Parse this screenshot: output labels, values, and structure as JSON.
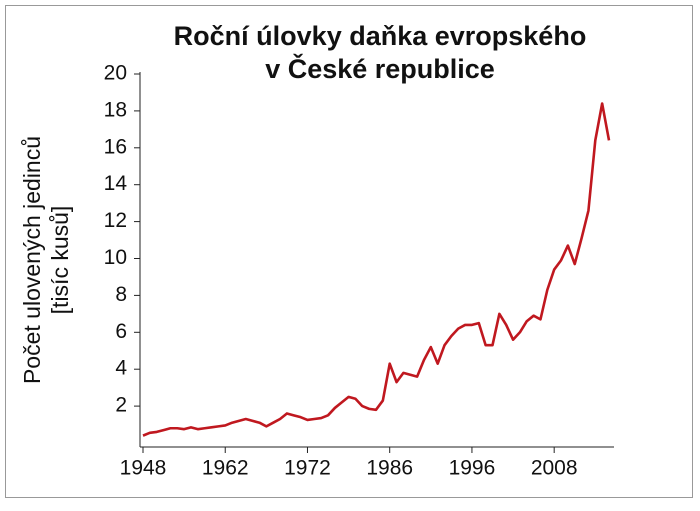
{
  "chart_data": {
    "type": "line",
    "title": [
      "Roční úlovky daňka evropského",
      "v České republice"
    ],
    "ylabel": [
      "Počet ulovených jedinců",
      "[tisíc kusů]"
    ],
    "categories": [
      "1948",
      null,
      null,
      null,
      null,
      null,
      null,
      null,
      null,
      null,
      null,
      null,
      "1962",
      null,
      null,
      null,
      null,
      null,
      null,
      null,
      null,
      null,
      null,
      null,
      "1972",
      null,
      null,
      null,
      null,
      null,
      null,
      null,
      null,
      null,
      null,
      null,
      "1986",
      null,
      null,
      null,
      null,
      null,
      null,
      null,
      null,
      null,
      null,
      null,
      "1996",
      null,
      null,
      null,
      null,
      null,
      null,
      null,
      null,
      null,
      null,
      null,
      "2008",
      null,
      null,
      null,
      null,
      null,
      null,
      null,
      null
    ],
    "series": [
      {
        "name": "Roční úlovky",
        "color": "#c0181f",
        "values": [
          0.4,
          0.55,
          0.6,
          0.7,
          0.8,
          0.8,
          0.75,
          0.85,
          0.75,
          0.8,
          0.85,
          0.9,
          0.95,
          1.1,
          1.2,
          1.3,
          1.2,
          1.1,
          0.9,
          1.1,
          1.3,
          1.6,
          1.5,
          1.4,
          1.25,
          1.3,
          1.35,
          1.5,
          1.9,
          2.2,
          2.5,
          2.4,
          2.0,
          1.85,
          1.8,
          2.3,
          4.3,
          3.3,
          3.8,
          3.7,
          3.6,
          4.5,
          5.2,
          4.3,
          5.3,
          5.8,
          6.2,
          6.4,
          6.4,
          6.5,
          5.3,
          5.3,
          7.0,
          6.4,
          5.6,
          6.0,
          6.6,
          6.9,
          6.7,
          8.3,
          9.4,
          9.9,
          10.7,
          9.7,
          11.1,
          12.6,
          16.4,
          18.4,
          16.4
        ]
      }
    ],
    "ylim": [
      0,
      20
    ],
    "yticks": [
      2,
      4,
      6,
      8,
      10,
      12,
      14,
      16,
      18,
      20
    ],
    "grid": false
  }
}
